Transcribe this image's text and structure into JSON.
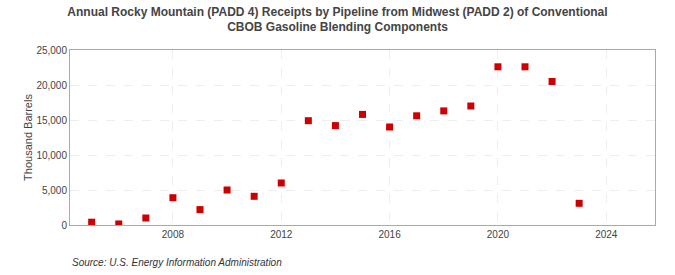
{
  "chart_data": {
    "type": "scatter",
    "title": "Annual Rocky Mountain (PADD 4) Receipts by Pipeline from Midwest (PADD 2) of Conventional\nCBOB Gasoline Blending Components",
    "ylabel": "Thousand Barrels",
    "annotations": [
      "Source: U.S. Energy Information Administration"
    ],
    "x": [
      2005,
      2006,
      2007,
      2008,
      2009,
      2010,
      2011,
      2012,
      2013,
      2014,
      2015,
      2016,
      2017,
      2018,
      2019,
      2020,
      2021,
      2022,
      2023
    ],
    "values": [
      400,
      150,
      1000,
      3900,
      2200,
      5000,
      4100,
      6000,
      14900,
      14200,
      15800,
      14000,
      15600,
      16300,
      17000,
      22600,
      22600,
      20500,
      3100
    ],
    "color": "#cc0000",
    "marker": "square",
    "xlim": [
      2004.2,
      2025.8
    ],
    "xticks": [
      2008,
      2012,
      2016,
      2020,
      2024
    ],
    "ylim": [
      0,
      25000
    ],
    "yticks": [
      0,
      {
        "value": 5000,
        "label": "5,000"
      },
      {
        "value": 10000,
        "label": "10,000"
      },
      {
        "value": 15000,
        "label": "15,000"
      },
      {
        "value": 20000,
        "label": "20,000"
      },
      {
        "value": 25000,
        "label": "25,000"
      }
    ],
    "grid": true
  }
}
